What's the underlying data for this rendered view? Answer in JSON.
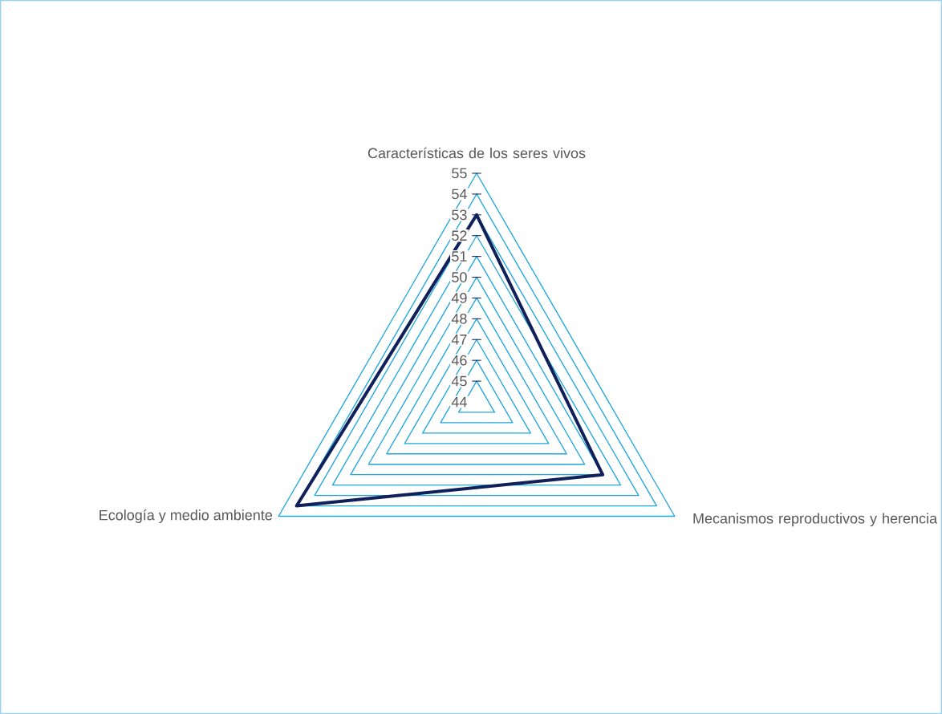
{
  "chart_data": {
    "type": "radar",
    "categories": [
      "Características de los seres vivos",
      "Mecanismos reproductivos y herencia",
      "Ecología y medio ambiente"
    ],
    "series": [
      {
        "color": "#10205a",
        "values": [
          53,
          51,
          54
        ]
      }
    ],
    "ylim": [
      44,
      55
    ],
    "yticks": [
      44,
      45,
      46,
      47,
      48,
      49,
      50,
      51,
      52,
      53,
      54,
      55
    ],
    "grid": true,
    "marker": "none",
    "line_style": "solid"
  }
}
